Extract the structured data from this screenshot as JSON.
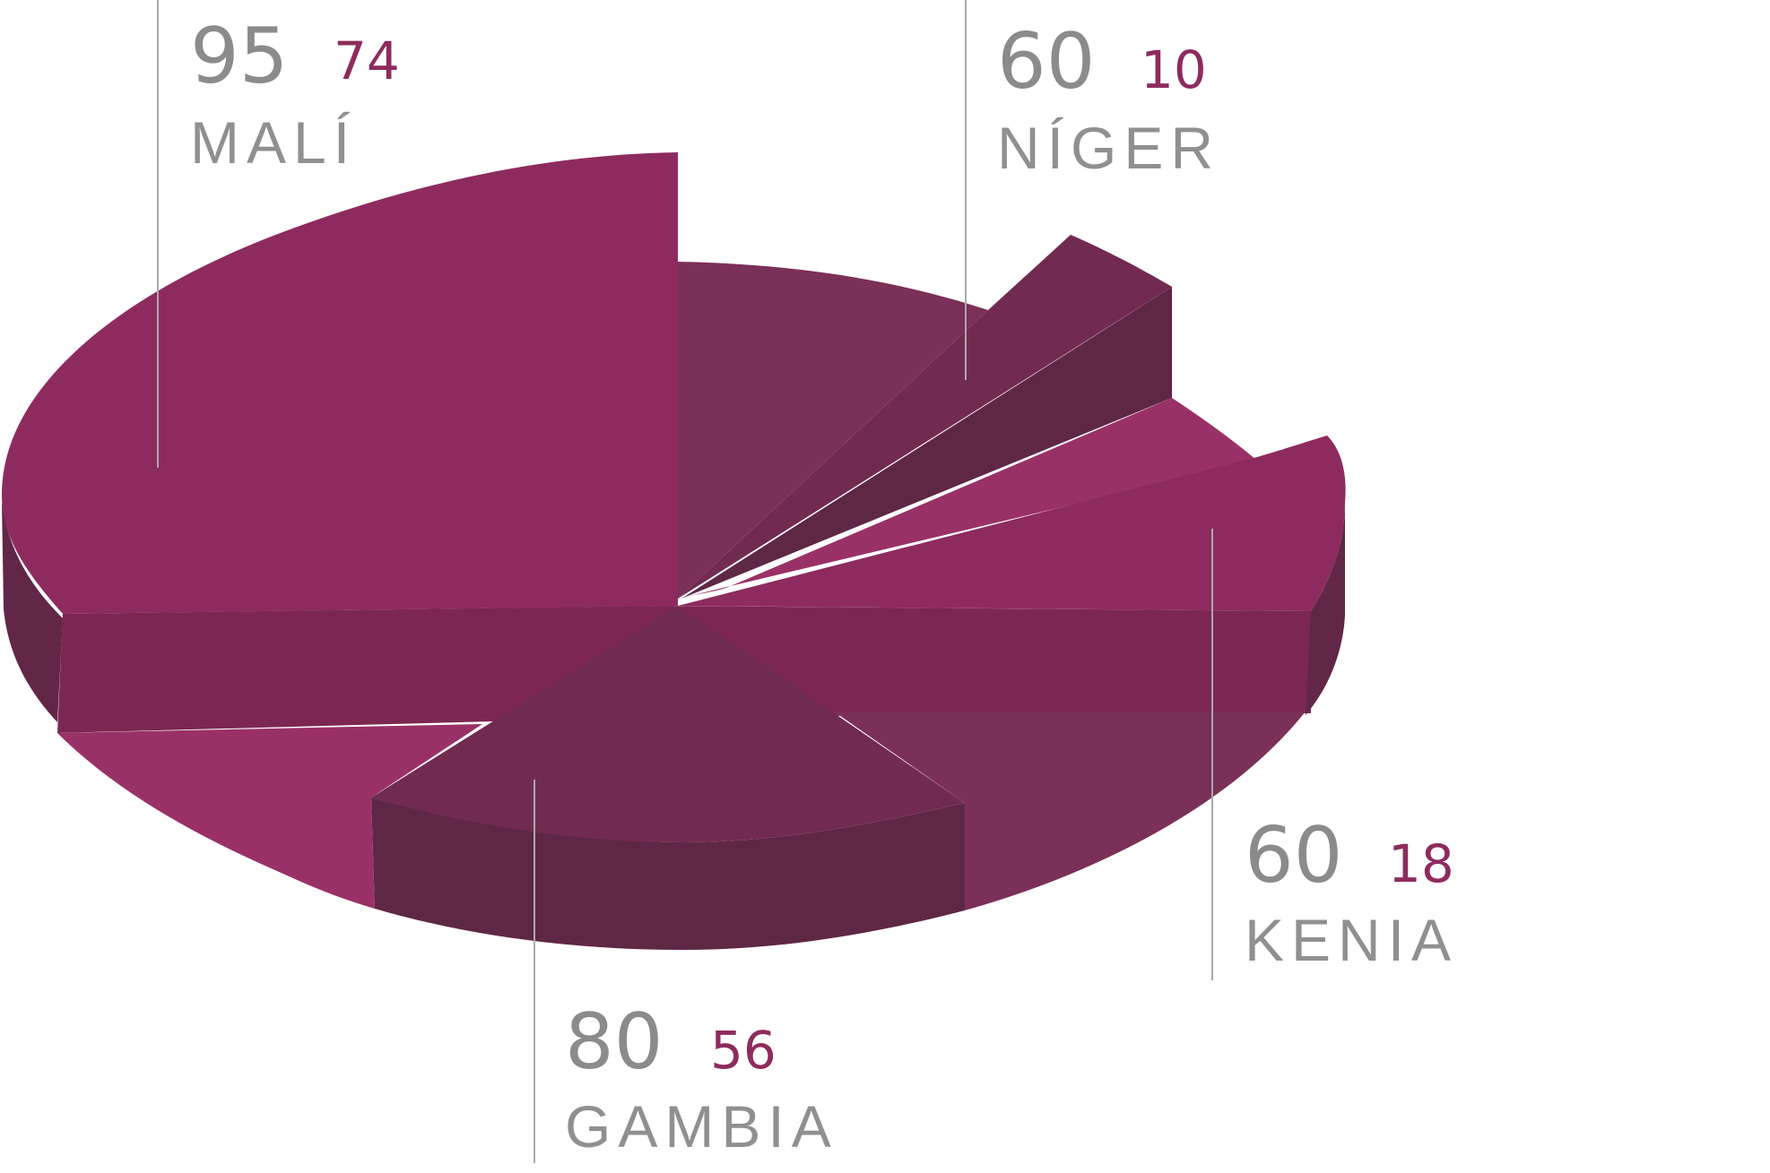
{
  "chart_data": {
    "type": "pie",
    "style": "3d-exploded",
    "series": [
      {
        "categories": [
          "MALÍ",
          "NÍGER",
          "KENIA",
          "GAMBIA"
        ],
        "primary_values": [
          95,
          60,
          60,
          80
        ],
        "secondary_values": [
          74,
          10,
          18,
          56
        ]
      }
    ],
    "colors": {
      "primary_top": "#8e2b5e",
      "light_top": "#9a3166",
      "mid_top": "#7b3058",
      "dark_top": "#722b50",
      "side": "#7c2752",
      "side_dark": "#622746",
      "side_darker": "#5f2746",
      "label_grey": "#8a8b8d",
      "label_accent": "#8e2b5e"
    }
  },
  "labels": [
    {
      "country": "MALÍ",
      "big": "95",
      "small": "74"
    },
    {
      "country": "NÍGER",
      "big": "60",
      "small": "10"
    },
    {
      "country": "KENIA",
      "big": "60",
      "small": "18"
    },
    {
      "country": "GAMBIA",
      "big": "80",
      "small": "56"
    }
  ]
}
